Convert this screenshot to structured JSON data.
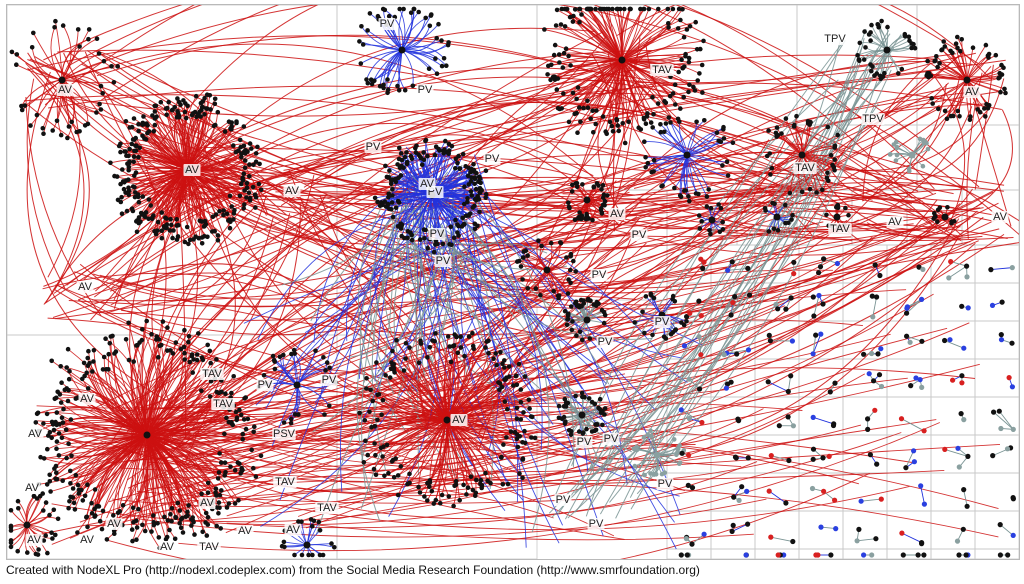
{
  "caption": "Created with NodeXL Pro (http://nodexl.codeplex.com) from the Social Media Research Foundation (http://www.smrfoundation.org)",
  "colors": {
    "edge_red": "#cc1010",
    "edge_blue": "#2233dd",
    "edge_gray": "#7a9494",
    "node_black": "#111111",
    "node_gray": "#8aa0a0",
    "node_red": "#d82020",
    "node_blue": "#2a40e0",
    "grid": "#c8c8c8"
  },
  "labels": [
    {
      "text": "AV"
    },
    {
      "text": "AV"
    },
    {
      "text": "AV"
    },
    {
      "text": "AV"
    },
    {
      "text": "PV"
    },
    {
      "text": "PV"
    },
    {
      "text": "PV"
    },
    {
      "text": "PV"
    },
    {
      "text": "PV"
    },
    {
      "text": "PV"
    },
    {
      "text": "TAV"
    },
    {
      "text": "TPV"
    },
    {
      "text": "TPV"
    },
    {
      "text": "AV"
    },
    {
      "text": "TAV"
    },
    {
      "text": "AV"
    },
    {
      "text": "PV"
    },
    {
      "text": "TAV"
    },
    {
      "text": "AV"
    },
    {
      "text": "AV"
    },
    {
      "text": "PV"
    },
    {
      "text": "PV"
    },
    {
      "text": "PV"
    },
    {
      "text": "PV"
    },
    {
      "text": "TAV"
    },
    {
      "text": "TAV"
    },
    {
      "text": "AV"
    },
    {
      "text": "AV"
    },
    {
      "text": "AV"
    },
    {
      "text": "PSV"
    },
    {
      "text": "PV"
    },
    {
      "text": "PV"
    },
    {
      "text": "TAV"
    },
    {
      "text": "TAV"
    },
    {
      "text": "AV"
    },
    {
      "text": "AV"
    },
    {
      "text": "AV"
    },
    {
      "text": "AV"
    },
    {
      "text": "AV"
    },
    {
      "text": "AV"
    },
    {
      "text": "TAV"
    },
    {
      "text": "AV"
    },
    {
      "text": "AV"
    },
    {
      "text": "AV"
    },
    {
      "text": "PV"
    },
    {
      "text": "PV"
    },
    {
      "text": "PV"
    },
    {
      "text": "PV"
    },
    {
      "text": "PV"
    }
  ]
}
